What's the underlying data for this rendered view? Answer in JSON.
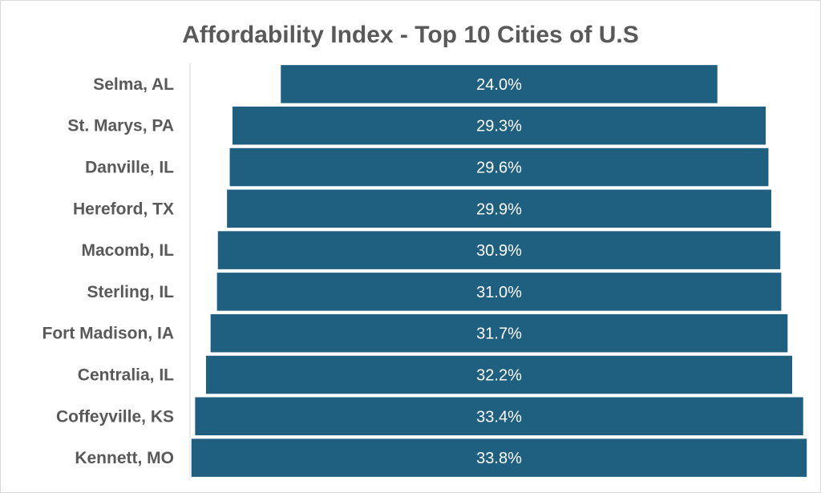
{
  "chart_data": {
    "type": "bar",
    "orientation": "horizontal",
    "style": "funnel",
    "title": "Affordability Index - Top 10 Cities of U.S",
    "categories": [
      "Selma, AL",
      "St. Marys, PA",
      "Danville, IL",
      "Hereford, TX",
      "Macomb, IL",
      "Sterling, IL",
      "Fort Madison, IA",
      "Centralia, IL",
      "Coffeyville, KS",
      "Kennett, MO"
    ],
    "values": [
      24.0,
      29.3,
      29.6,
      29.9,
      30.9,
      31.0,
      31.7,
      32.2,
      33.4,
      33.8
    ],
    "value_labels": [
      "24.0%",
      "29.3%",
      "29.6%",
      "29.9%",
      "30.9%",
      "31.0%",
      "31.7%",
      "32.2%",
      "33.4%",
      "33.8%"
    ],
    "unit": "%",
    "xlabel": "",
    "ylabel": "",
    "grid": false,
    "legend": "none",
    "colors": {
      "bar": "#1f5f7f",
      "bar_edge": "#ffffff",
      "label": "#595959",
      "axis": "#d9d9d9"
    }
  }
}
